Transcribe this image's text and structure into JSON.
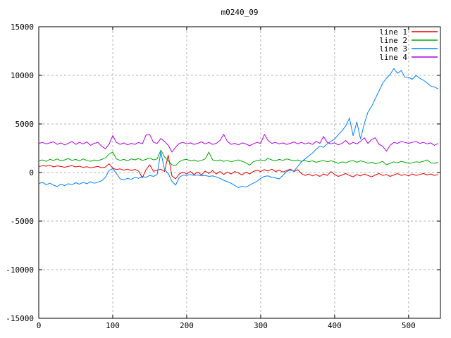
{
  "window": {
    "background": "#ffffff",
    "border_color": "#000000",
    "grid_color": "#b4b4b4"
  },
  "chart_data": {
    "type": "line",
    "title": "m0240_09",
    "xlabel": "",
    "ylabel": "",
    "xlim": [
      0,
      543
    ],
    "ylim": [
      -15000,
      15000
    ],
    "x_ticks": [
      0,
      100,
      200,
      300,
      400,
      500
    ],
    "y_ticks": [
      -15000,
      -10000,
      -5000,
      0,
      5000,
      10000,
      15000
    ],
    "grid": true,
    "legend_position": "top-right",
    "x_start": 0,
    "x_step": 5,
    "series": [
      {
        "name": "line 1",
        "color": "#e60000",
        "values": [
          600,
          700,
          650,
          750,
          580,
          680,
          620,
          540,
          640,
          700,
          580,
          650,
          520,
          600,
          480,
          560,
          620,
          500,
          560,
          900,
          450,
          300,
          380,
          250,
          350,
          220,
          320,
          150,
          -550,
          280,
          800,
          120,
          250,
          350,
          100,
          1800,
          -350,
          -650,
          -150,
          50,
          -150,
          100,
          -200,
          50,
          -250,
          150,
          -100,
          200,
          -150,
          100,
          -200,
          50,
          -150,
          100,
          -50,
          -250,
          50,
          -150,
          100,
          250,
          100,
          300,
          150,
          350,
          100,
          250,
          50,
          200,
          350,
          100,
          300,
          -100,
          -300,
          -150,
          -350,
          -200,
          -400,
          -150,
          -300,
          100,
          -200,
          -400,
          -250,
          -100,
          -300,
          -450,
          -200,
          -350,
          -150,
          -300,
          -450,
          -250,
          -100,
          -300,
          -200,
          -400,
          -250,
          -100,
          -300,
          -200,
          -350,
          -150,
          -300,
          -200,
          -100,
          -250,
          -150,
          -300,
          -200
        ]
      },
      {
        "name": "line 2",
        "color": "#00aa00",
        "values": [
          1200,
          1300,
          1150,
          1350,
          1250,
          1400,
          1200,
          1300,
          1450,
          1250,
          1350,
          1200,
          1400,
          1250,
          1150,
          1300,
          1200,
          1350,
          1500,
          1900,
          2100,
          1400,
          1250,
          1350,
          1200,
          1400,
          1300,
          1450,
          1250,
          1350,
          1500,
          1300,
          1400,
          2300,
          1600,
          1200,
          800,
          700,
          1100,
          1300,
          1350,
          1200,
          1300,
          1150,
          1250,
          1400,
          2100,
          1300,
          1200,
          1300,
          1150,
          1250,
          1100,
          1200,
          1300,
          1150,
          1000,
          750,
          1100,
          1250,
          1300,
          1200,
          1450,
          1300,
          1200,
          1350,
          1250,
          1400,
          1300,
          1200,
          1300,
          1150,
          1250,
          1100,
          1200,
          1050,
          1150,
          1250,
          1100,
          1200,
          1100,
          950,
          1100,
          1000,
          1150,
          1250,
          1050,
          1200,
          1100,
          950,
          1050,
          900,
          1000,
          1150,
          800,
          950,
          1100,
          1000,
          1150,
          1050,
          950,
          1000,
          1100,
          1050,
          1150,
          1300,
          1000,
          950,
          1050
        ]
      },
      {
        "name": "line 3",
        "color": "#0080ff",
        "values": [
          -1150,
          -1000,
          -1250,
          -1100,
          -1300,
          -1450,
          -1200,
          -1350,
          -1150,
          -1250,
          -1050,
          -1200,
          -1000,
          -1150,
          -950,
          -1100,
          -1000,
          -850,
          -500,
          200,
          400,
          -100,
          -650,
          -750,
          -600,
          -700,
          -500,
          -600,
          -400,
          -500,
          -300,
          -400,
          -200,
          2100,
          300,
          -100,
          -900,
          -1300,
          -500,
          -250,
          -300,
          -200,
          -300,
          -250,
          -350,
          -300,
          -400,
          -350,
          -450,
          -600,
          -800,
          -950,
          -1100,
          -1350,
          -1550,
          -1400,
          -1500,
          -1300,
          -1100,
          -900,
          -600,
          -400,
          -350,
          -500,
          -550,
          -650,
          -300,
          100,
          250,
          150,
          600,
          1100,
          1400,
          1700,
          2000,
          2400,
          2700,
          2600,
          2950,
          3200,
          3450,
          3900,
          4300,
          4800,
          5600,
          3800,
          5200,
          3450,
          5000,
          6200,
          6800,
          7600,
          8400,
          9200,
          9700,
          10100,
          10700,
          10200,
          10500,
          9800,
          9790,
          9600,
          10000,
          9700,
          9500,
          9200,
          8900,
          8800,
          8600
        ]
      },
      {
        "name": "line 4",
        "color": "#b000e0",
        "values": [
          3000,
          3100,
          2950,
          3050,
          3150,
          2900,
          3050,
          2850,
          3000,
          3200,
          2900,
          3100,
          2950,
          3150,
          2800,
          3000,
          3100,
          2700,
          2450,
          2900,
          3800,
          3100,
          2900,
          3050,
          2850,
          3000,
          2900,
          3100,
          2950,
          3850,
          3900,
          3100,
          3000,
          3500,
          3200,
          2800,
          2100,
          2600,
          3000,
          3100,
          2950,
          3050,
          2900,
          3000,
          3150,
          2950,
          3100,
          2900,
          3000,
          3300,
          3930,
          3200,
          2900,
          3000,
          2850,
          3050,
          2950,
          2750,
          2950,
          3100,
          3000,
          3930,
          3300,
          3000,
          3100,
          2950,
          3050,
          2900,
          3000,
          3150,
          2950,
          3100,
          2950,
          3050,
          2900,
          3200,
          3000,
          3710,
          3100,
          2950,
          3050,
          2850,
          3000,
          3300,
          2900,
          3100,
          2950,
          3200,
          3570,
          3000,
          3400,
          3570,
          2900,
          2700,
          2200,
          2800,
          3100,
          3000,
          3200,
          3100,
          3000,
          3100,
          3200,
          3000,
          3100,
          2950,
          3050,
          2800,
          3000
        ]
      }
    ]
  }
}
